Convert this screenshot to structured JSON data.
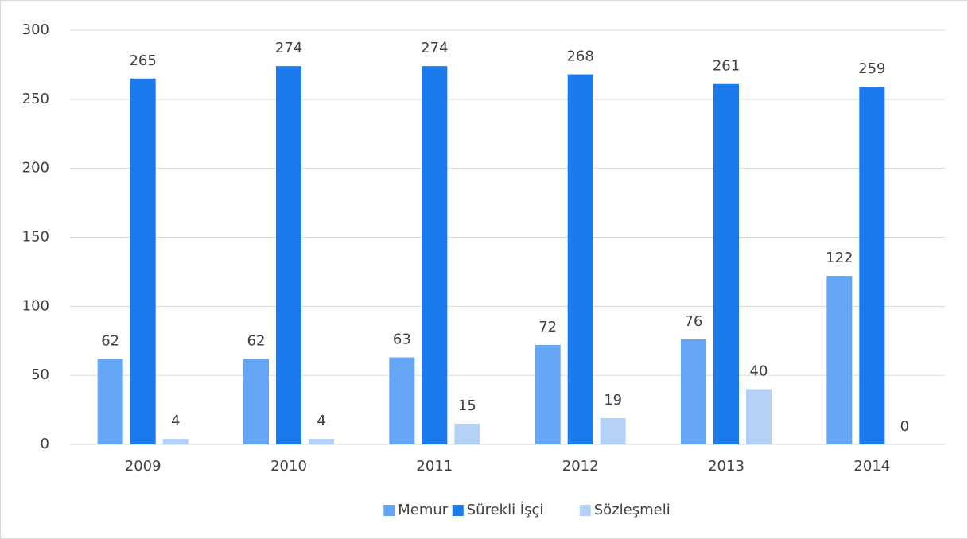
{
  "chart_data": {
    "type": "bar",
    "categories": [
      "2009",
      "2010",
      "2011",
      "2012",
      "2013",
      "2014"
    ],
    "series": [
      {
        "name": "Memur",
        "color": "#64a6f5",
        "values": [
          62,
          62,
          63,
          72,
          76,
          122
        ]
      },
      {
        "name": "Sürekli İşçi",
        "color": "#1a7bef",
        "values": [
          265,
          274,
          274,
          268,
          261,
          259
        ]
      },
      {
        "name": "Sözleşmeli",
        "color": "#b4d2f8",
        "values": [
          4,
          4,
          15,
          19,
          40,
          0
        ]
      }
    ],
    "ylim": [
      0,
      300
    ],
    "yticks": [
      0,
      50,
      100,
      150,
      200,
      250,
      300
    ],
    "grid": true,
    "legend": "bottom"
  }
}
